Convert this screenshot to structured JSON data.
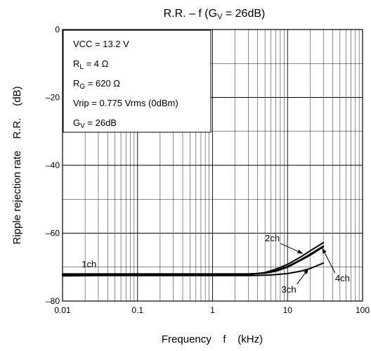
{
  "chart_data": {
    "type": "line",
    "title": "R.R. – f (GV = 26dB)",
    "title_parts": {
      "pre": "R.R. – f (G",
      "sub": "V",
      "post": " = 26dB)"
    },
    "xlabel": "Frequency    f    (kHz)",
    "ylabel": "Ripple rejection rate    R.R.    (dB)",
    "x_scale": "log",
    "xlim": [
      0.01,
      100
    ],
    "ylim": [
      -80,
      0
    ],
    "x_ticks": [
      {
        "v": 0.01,
        "label": "0.01"
      },
      {
        "v": 0.1,
        "label": "0.1"
      },
      {
        "v": 1,
        "label": "1"
      },
      {
        "v": 10,
        "label": "10"
      },
      {
        "v": 100,
        "label": "100"
      }
    ],
    "y_ticks": [
      {
        "v": 0,
        "label": "0"
      },
      {
        "v": -20,
        "label": "–20"
      },
      {
        "v": -40,
        "label": "–40"
      },
      {
        "v": -60,
        "label": "–60"
      },
      {
        "v": -80,
        "label": "–80"
      }
    ],
    "grid": true,
    "conditions": [
      {
        "pre": "VCC = 13.2 V",
        "sub": "",
        "post": ""
      },
      {
        "pre": "R",
        "sub": "L",
        "post": " = 4 Ω"
      },
      {
        "pre": "R",
        "sub": "G",
        "post": " = 620 Ω"
      },
      {
        "pre": "Vrip = 0.775 Vrms (0dBm)",
        "sub": "",
        "post": ""
      },
      {
        "pre": "G",
        "sub": "V",
        "post": " = 26dB"
      }
    ],
    "series": [
      {
        "name": "1ch",
        "x": [
          0.01,
          0.03,
          0.1,
          0.3,
          1,
          2,
          3,
          5,
          7,
          10,
          15,
          20,
          30
        ],
        "values": [
          -72,
          -72,
          -72,
          -72,
          -72,
          -72,
          -72,
          -71.8,
          -71.2,
          -70,
          -68,
          -66.5,
          -64
        ]
      },
      {
        "name": "2ch",
        "x": [
          0.01,
          0.03,
          0.1,
          0.3,
          1,
          2,
          3,
          5,
          7,
          10,
          15,
          20,
          30
        ],
        "values": [
          -72.3,
          -72.3,
          -72.3,
          -72.3,
          -72.3,
          -72.3,
          -72.2,
          -71.6,
          -70.6,
          -69.2,
          -67,
          -65.2,
          -62.8
        ]
      },
      {
        "name": "3ch",
        "x": [
          0.01,
          0.03,
          0.1,
          0.3,
          1,
          2,
          3,
          5,
          7,
          10,
          15,
          20,
          30
        ],
        "values": [
          -72.6,
          -72.5,
          -72.5,
          -72.5,
          -72.5,
          -72.5,
          -72.5,
          -72.4,
          -72.2,
          -71.9,
          -71.2,
          -70.4,
          -68.8
        ]
      },
      {
        "name": "4ch",
        "x": [
          0.01,
          0.03,
          0.1,
          0.3,
          1,
          2,
          3,
          5,
          7,
          10,
          15,
          20,
          30
        ],
        "values": [
          -72.2,
          -72.2,
          -72.2,
          -72.2,
          -72.2,
          -72.2,
          -72.1,
          -71.7,
          -71,
          -69.8,
          -67.8,
          -66.2,
          -63.8
        ]
      }
    ],
    "annotations": [
      {
        "series": "1ch",
        "text": "1ch",
        "x": 0.018,
        "y": -70
      },
      {
        "series": "2ch",
        "text": "2ch",
        "x": 5.0,
        "y": -62.4,
        "arrow_to": [
          16,
          -66
        ]
      },
      {
        "series": "3ch",
        "text": "3ch",
        "x": 8.3,
        "y": -77.5,
        "arrow_to": [
          19,
          -70.5
        ]
      },
      {
        "series": "4ch",
        "text": "4ch",
        "x": 43,
        "y": -74.2,
        "arrow_to": [
          29,
          -64.4
        ]
      }
    ]
  }
}
